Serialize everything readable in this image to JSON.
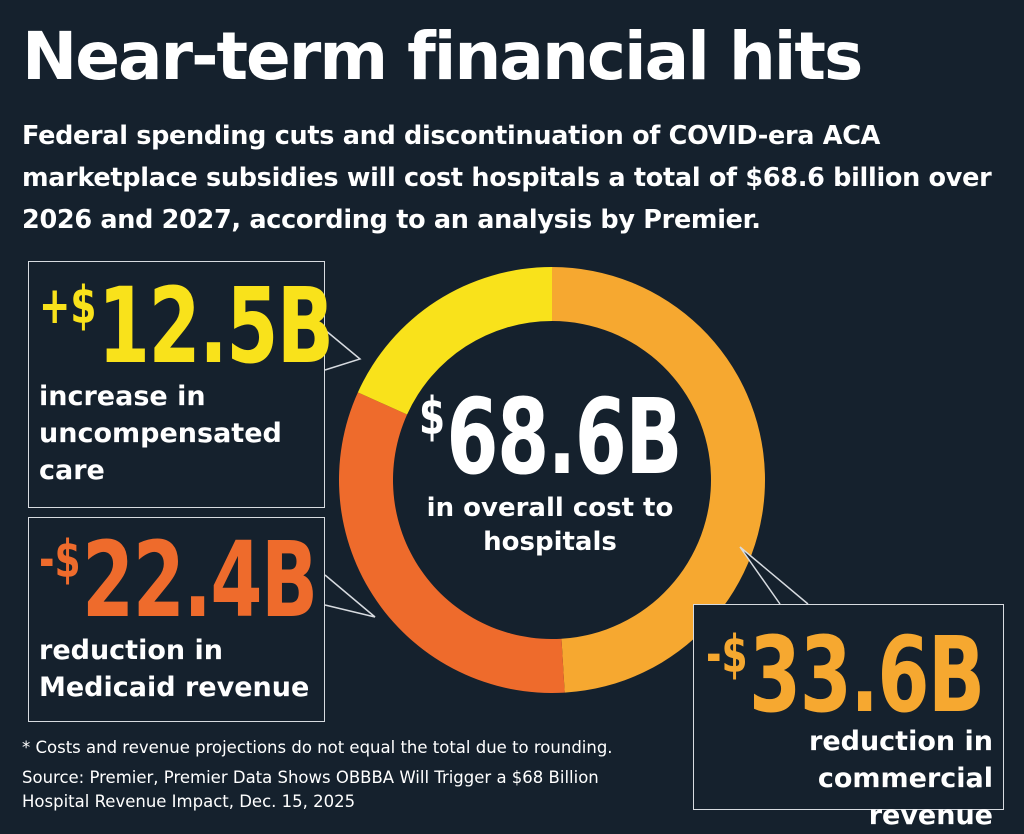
{
  "title": "Near-term financial hits",
  "subtitle": "Federal spending cuts and discontinuation of COVID-era ACA marketplace subsidies will cost hospitals a total of $68.6 billion over 2026 and 2027, according to an analysis by Premier.",
  "center": {
    "currency": "$",
    "value": "68.6B",
    "description": "in overall cost to hospitals"
  },
  "callouts": [
    {
      "sign": "+",
      "currency": "$",
      "value": "12.5B",
      "description": "increase in uncompensated care"
    },
    {
      "sign": "-",
      "currency": "$",
      "value": "22.4B",
      "description": "reduction in Medicaid revenue"
    },
    {
      "sign": "-",
      "currency": "$",
      "value": "33.6B",
      "description": "reduction in commercial revenue"
    }
  ],
  "footnote": "* Costs and revenue projections do not equal the total due to rounding.",
  "source": "Source: Premier, Premier Data Shows OBBBA Will Trigger a $68 Billion Hospital Revenue Impact, Dec. 15, 2025",
  "colors": {
    "background": "#15212d",
    "uncompensated_care": "#f9e21b",
    "medicaid": "#ee6b2c",
    "commercial": "#f6a830"
  },
  "chart_data": {
    "type": "pie",
    "donut": true,
    "total": 68.6,
    "unit": "billion USD",
    "categories": [
      "increase in uncompensated care",
      "reduction in Medicaid revenue",
      "reduction in commercial revenue"
    ],
    "values": [
      12.5,
      22.4,
      33.6
    ],
    "colors": [
      "#f9e21b",
      "#ee6b2c",
      "#f6a830"
    ]
  }
}
